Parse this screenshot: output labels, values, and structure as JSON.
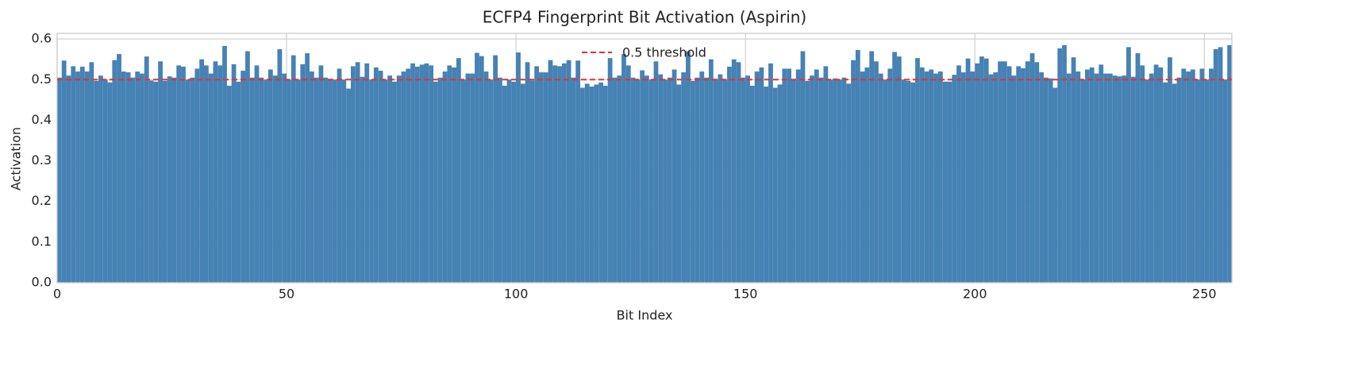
{
  "chart_data": {
    "type": "bar",
    "title": "ECFP4 Fingerprint Bit Activation (Aspirin)",
    "x_label": "Bit Index",
    "y_label": "Activation",
    "color": "#4682b4",
    "x": [
      0,
      1,
      2,
      3,
      4,
      5,
      6,
      7,
      8,
      9,
      10,
      11,
      12,
      13,
      14,
      15,
      16,
      17,
      18,
      19,
      20,
      21,
      22,
      23,
      24,
      25,
      26,
      27,
      28,
      29,
      30,
      31,
      32,
      33,
      34,
      35,
      36,
      37,
      38,
      39,
      40,
      41,
      42,
      43,
      44,
      45,
      46,
      47,
      48,
      49,
      50,
      51,
      52,
      53,
      54,
      55,
      56,
      57,
      58,
      59,
      60,
      61,
      62,
      63,
      64,
      65,
      66,
      67,
      68,
      69,
      70,
      71,
      72,
      73,
      74,
      75,
      76,
      77,
      78,
      79,
      80,
      81,
      82,
      83,
      84,
      85,
      86,
      87,
      88,
      89,
      90,
      91,
      92,
      93,
      94,
      95,
      96,
      97,
      98,
      99,
      100,
      101,
      102,
      103,
      104,
      105,
      106,
      107,
      108,
      109,
      110,
      111,
      112,
      113,
      114,
      115,
      116,
      117,
      118,
      119,
      120,
      121,
      122,
      123,
      124,
      125,
      126,
      127,
      128,
      129,
      130,
      131,
      132,
      133,
      134,
      135,
      136,
      137,
      138,
      139,
      140,
      141,
      142,
      143,
      144,
      145,
      146,
      147,
      148,
      149,
      150,
      151,
      152,
      153,
      154,
      155,
      156,
      157,
      158,
      159,
      160,
      161,
      162,
      163,
      164,
      165,
      166,
      167,
      168,
      169,
      170,
      171,
      172,
      173,
      174,
      175,
      176,
      177,
      178,
      179,
      180,
      181,
      182,
      183,
      184,
      185,
      186,
      187,
      188,
      189,
      190,
      191,
      192,
      193,
      194,
      195,
      196,
      197,
      198,
      199,
      200,
      201,
      202,
      203,
      204,
      205,
      206,
      207,
      208,
      209,
      210,
      211,
      212,
      213,
      214,
      215,
      216,
      217,
      218,
      219,
      220,
      221,
      222,
      223,
      224,
      225,
      226,
      227,
      228,
      229,
      230,
      231,
      232,
      233,
      234,
      235,
      236,
      237,
      238,
      239,
      240,
      241,
      242,
      243,
      244,
      245,
      246,
      247,
      248,
      249,
      250,
      251,
      252,
      253,
      254,
      255
    ],
    "values": [
      0.505,
      0.547,
      0.51,
      0.533,
      0.52,
      0.532,
      0.52,
      0.543,
      0.497,
      0.51,
      0.5,
      0.493,
      0.548,
      0.563,
      0.52,
      0.518,
      0.505,
      0.52,
      0.515,
      0.557,
      0.498,
      0.495,
      0.545,
      0.497,
      0.508,
      0.505,
      0.535,
      0.532,
      0.5,
      0.505,
      0.527,
      0.55,
      0.535,
      0.515,
      0.545,
      0.535,
      0.583,
      0.485,
      0.538,
      0.495,
      0.522,
      0.57,
      0.505,
      0.535,
      0.505,
      0.5,
      0.525,
      0.51,
      0.575,
      0.515,
      0.5,
      0.56,
      0.5,
      0.538,
      0.565,
      0.52,
      0.505,
      0.535,
      0.505,
      0.5,
      0.5,
      0.527,
      0.5,
      0.478,
      0.533,
      0.543,
      0.507,
      0.54,
      0.5,
      0.53,
      0.522,
      0.5,
      0.51,
      0.495,
      0.51,
      0.52,
      0.527,
      0.54,
      0.532,
      0.537,
      0.54,
      0.535,
      0.495,
      0.505,
      0.52,
      0.535,
      0.53,
      0.553,
      0.5,
      0.515,
      0.515,
      0.566,
      0.558,
      0.52,
      0.5,
      0.56,
      0.505,
      0.485,
      0.5,
      0.495,
      0.567,
      0.49,
      0.543,
      0.498,
      0.533,
      0.518,
      0.518,
      0.548,
      0.535,
      0.533,
      0.54,
      0.548,
      0.505,
      0.547,
      0.48,
      0.49,
      0.483,
      0.488,
      0.493,
      0.485,
      0.553,
      0.505,
      0.51,
      0.563,
      0.535,
      0.505,
      0.5,
      0.523,
      0.51,
      0.5,
      0.545,
      0.513,
      0.5,
      0.505,
      0.525,
      0.488,
      0.518,
      0.57,
      0.497,
      0.505,
      0.52,
      0.505,
      0.55,
      0.5,
      0.513,
      0.5,
      0.532,
      0.55,
      0.543,
      0.505,
      0.51,
      0.485,
      0.52,
      0.53,
      0.483,
      0.54,
      0.48,
      0.488,
      0.527,
      0.527,
      0.5,
      0.525,
      0.57,
      0.497,
      0.51,
      0.525,
      0.505,
      0.533,
      0.5,
      0.503,
      0.5,
      0.505,
      0.49,
      0.548,
      0.573,
      0.52,
      0.53,
      0.57,
      0.545,
      0.515,
      0.5,
      0.527,
      0.568,
      0.557,
      0.5,
      0.497,
      0.493,
      0.553,
      0.53,
      0.52,
      0.525,
      0.515,
      0.52,
      0.495,
      0.495,
      0.512,
      0.535,
      0.518,
      0.552,
      0.52,
      0.54,
      0.557,
      0.552,
      0.513,
      0.518,
      0.545,
      0.545,
      0.533,
      0.51,
      0.533,
      0.528,
      0.545,
      0.565,
      0.543,
      0.518,
      0.505,
      0.503,
      0.48,
      0.577,
      0.585,
      0.515,
      0.555,
      0.52,
      0.5,
      0.525,
      0.53,
      0.515,
      0.537,
      0.515,
      0.515,
      0.51,
      0.508,
      0.51,
      0.58,
      0.507,
      0.565,
      0.535,
      0.5,
      0.515,
      0.537,
      0.53,
      0.493,
      0.555,
      0.49,
      0.505,
      0.527,
      0.52,
      0.525,
      0.5,
      0.527,
      0.5,
      0.527,
      0.575,
      0.58,
      0.5,
      0.585
    ],
    "threshold": {
      "value": 0.5,
      "label": "0.5 threshold",
      "color": "#e8302f"
    },
    "xlim": [
      0,
      256
    ],
    "xticks": [
      0,
      50,
      100,
      150,
      200,
      250
    ],
    "ylim": [
      0,
      0.614
    ],
    "yticks": [
      {
        "value": 0,
        "label": "0.0"
      },
      0.1,
      0.2,
      0.3,
      0.4,
      0.5,
      0.6
    ],
    "grid": true
  }
}
